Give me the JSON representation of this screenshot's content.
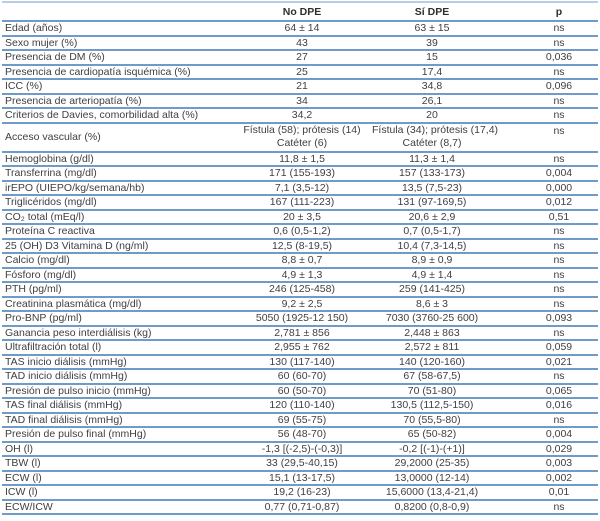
{
  "colors": {
    "row_line": "#6f9bc9",
    "top_line": "#b7cde7",
    "text": "#404040"
  },
  "table": {
    "columns": {
      "label": "",
      "no_dpe": "No DPE",
      "si_dpe": "Sí DPE",
      "p": "p"
    },
    "rows": [
      {
        "label": "Edad (años)",
        "v1": "64 ± 14",
        "v2": "63 ± 15",
        "p": "ns"
      },
      {
        "label": "Sexo mujer (%)",
        "v1": "43",
        "v2": "39",
        "p": "ns"
      },
      {
        "label": "Presencia de DM (%)",
        "v1": "27",
        "v2": "15",
        "p": "0,036"
      },
      {
        "label": "Presencia de cardiopatía isquémica (%)",
        "v1": "25",
        "v2": "17,4",
        "p": "ns"
      },
      {
        "label": "ICC (%)",
        "v1": "21",
        "v2": "34,8",
        "p": "0,096"
      },
      {
        "label": "Presencia de arteriopatía (%)",
        "v1": "34",
        "v2": "26,1",
        "p": "ns"
      },
      {
        "label": "Criterios de Davies, comorbilidad alta (%)",
        "v1": "34,2",
        "v2": "20",
        "p": "ns"
      },
      {
        "label": "Acceso vascular (%)",
        "v1": "Fístula (58); prótesis (14)",
        "v1b": "Catéter (6)",
        "v2": "Fístula (34); prótesis (17,4)",
        "v2b": "Catéter (8,7)",
        "p": "ns"
      },
      {
        "label": "Hemoglobina (g/dl)",
        "v1": "11,8 ± 1,5",
        "v2": "11,3 ± 1,4",
        "p": "ns"
      },
      {
        "label": "Transferrina (mg/dl)",
        "v1": "171 (155-193)",
        "v2": "157 (133-173)",
        "p": "0,004"
      },
      {
        "label": "irEPO (UIEPO/kg/semana/hb)",
        "v1": "7,1 (3,5-12)",
        "v2": "13,5 (7,5-23)",
        "p": "0,000"
      },
      {
        "label": "Triglicéridos (mg/dl)",
        "v1": "167 (111-223)",
        "v2": "131 (97-169,5)",
        "p": "0,012"
      },
      {
        "label": "CO₂ total (mEq/l)",
        "v1": "20 ± 3,5",
        "v2": "20,6 ± 2,9",
        "p": "0,51"
      },
      {
        "label": "Proteína C reactiva",
        "v1": "0,6 (0,5-1,2)",
        "v2": "0,7 (0,5-1,7)",
        "p": "ns"
      },
      {
        "label": "25 (OH) D3 Vitamina D (ng/ml)",
        "v1": "12,5 (8-19,5)",
        "v2": "10,4 (7,3-14,5)",
        "p": "ns"
      },
      {
        "label": "Calcio (mg/dl)",
        "v1": "8,8 ± 0,7",
        "v2": "8,9 ± 0,9",
        "p": "ns"
      },
      {
        "label": "Fósforo (mg/dl)",
        "v1": "4,9 ± 1,3",
        "v2": "4,9 ± 1,4",
        "p": "ns"
      },
      {
        "label": "PTH (pg/ml)",
        "v1": "246 (125-458)",
        "v2": "259 (141-425)",
        "p": "ns"
      },
      {
        "label": "Creatinina plasmática (mg/dl)",
        "v1": "9,2 ± 2,5",
        "v2": "8,6 ± 3",
        "p": "ns"
      },
      {
        "label": "Pro-BNP (pg/ml)",
        "v1": "5050 (1925-12 150)",
        "v2": "7030 (3760-25 600)",
        "p": "0,093"
      },
      {
        "label": "Ganancia peso interdiálisis (kg)",
        "v1": "2,781 ± 856",
        "v2": "2,448 ± 863",
        "p": "ns"
      },
      {
        "label": "Ultrafiltración total (l)",
        "v1": "2,955 ± 762",
        "v2": "2,572 ± 811",
        "p": "0,059"
      },
      {
        "label": "TAS inicio diálisis (mmHg)",
        "v1": "130 (117-140)",
        "v2": "140 (120-160)",
        "p": "0,021"
      },
      {
        "label": "TAD inicio diálisis (mmHg)",
        "v1": "60 (60-70)",
        "v2": "67 (58-67,5)",
        "p": "ns"
      },
      {
        "label": "Presión de pulso inicio (mmHg)",
        "v1": "60 (50-70)",
        "v2": "70 (51-80)",
        "p": "0,065"
      },
      {
        "label": "TAS final diálisis (mmHg)",
        "v1": "120 (110-140)",
        "v2": "130,5 (112,5-150)",
        "p": "0,016"
      },
      {
        "label": "TAD final diálisis (mmHg)",
        "v1": "69 (55-75)",
        "v2": "70 (55,5-80)",
        "p": "ns"
      },
      {
        "label": "Presión de pulso final (mmHg)",
        "v1": "56 (48-70)",
        "v2": "65 (50-82)",
        "p": "0,004"
      },
      {
        "label": "OH (l)",
        "v1": "-1,3 [(-2,5)-(-0,3)]",
        "v2": "-0,2 [(-1)-(+1)]",
        "p": "0,029"
      },
      {
        "label": "TBW (l)",
        "v1": "33 (29,5-40,15)",
        "v2": "29,2000 (25-35)",
        "p": "0,003"
      },
      {
        "label": "ECW (l)",
        "v1": "15,1 (13-17,5)",
        "v2": "13,0000 (12-14)",
        "p": "0,002"
      },
      {
        "label": "ICW (l)",
        "v1": "19,2 (16-23)",
        "v2": "15,6000 (13,4-21,4)",
        "p": "0,01"
      },
      {
        "label": "ECW/ICW",
        "v1": "0,77 (0,71-0,87)",
        "v2": "0,8200 (0,8-0,9)",
        "p": "ns"
      }
    ]
  }
}
